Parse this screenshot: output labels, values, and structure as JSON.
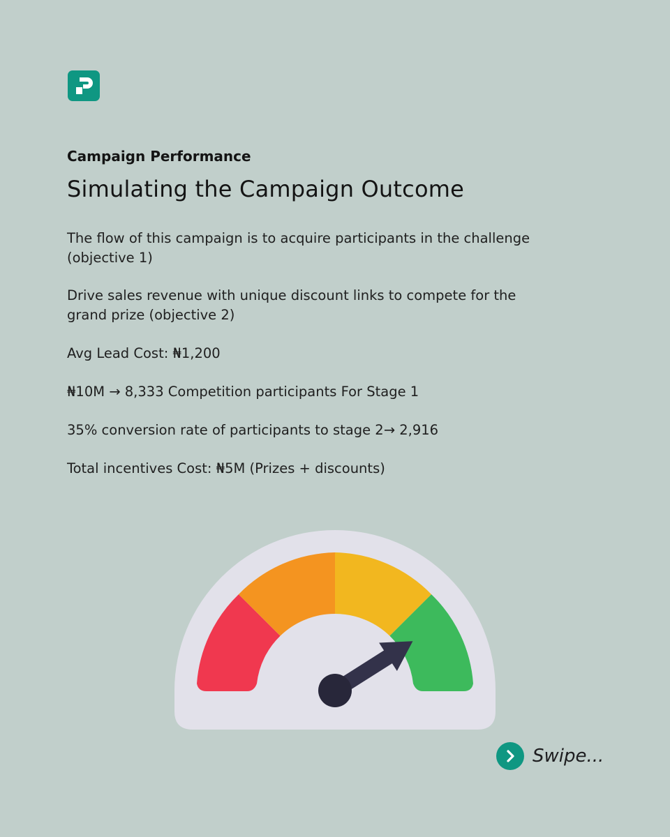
{
  "header": {
    "eyebrow": "Campaign Performance",
    "title": "Simulating the Campaign Outcome"
  },
  "body": {
    "paragraphs": [
      "The flow of this campaign is to acquire participants in the challenge (objective 1)",
      "Drive sales revenue with unique discount links to compete for the grand prize (objective 2)",
      "Avg Lead Cost: ₦1,200",
      "₦10M → 8,333 Competition participants For Stage 1",
      "35% conversion rate of participants to stage 2→ 2,916",
      "Total incentives Cost: ₦5M  (Prizes + discounts)"
    ]
  },
  "gauge": {
    "icon": "speedometer-icon",
    "needle_fraction": 0.82,
    "colors": {
      "red": "#f0384f",
      "orange": "#f49420",
      "yellow": "#f2b71f",
      "green": "#3dba5c",
      "backdrop": "#e2e1ea",
      "needle": "#33324a",
      "hub": "#28273a"
    }
  },
  "footer": {
    "swipe_label": "Swipe..."
  },
  "theme": {
    "background": "#c1cfcb",
    "accent": "#0f9782"
  }
}
